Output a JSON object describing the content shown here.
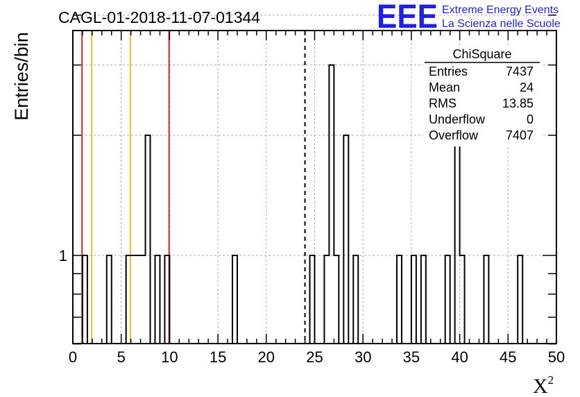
{
  "chart_data": {
    "type": "histogram",
    "title": "CAGL-01-2018-11-07-01344",
    "xlabel": "X",
    "xlabel_sup": "2",
    "ylabel": "Entries/bin",
    "xlim": [
      0,
      50
    ],
    "y_log": true,
    "y_tick_labels": [
      {
        "value": 1,
        "label": "1"
      }
    ],
    "x_ticks": [
      0,
      5,
      10,
      15,
      20,
      25,
      30,
      35,
      40,
      45,
      50
    ],
    "grid": true,
    "bin_width": 0.5,
    "bins": [
      {
        "x0": 1.0,
        "count": 1
      },
      {
        "x0": 3.5,
        "count": 1
      },
      {
        "x0": 5.5,
        "count": 1
      },
      {
        "x0": 6.0,
        "count": 1
      },
      {
        "x0": 6.5,
        "count": 1
      },
      {
        "x0": 7.0,
        "count": 1
      },
      {
        "x0": 7.5,
        "count": 2
      },
      {
        "x0": 8.5,
        "count": 1
      },
      {
        "x0": 9.5,
        "count": 1
      },
      {
        "x0": 16.5,
        "count": 1
      },
      {
        "x0": 24.5,
        "count": 1
      },
      {
        "x0": 26.0,
        "count": 1
      },
      {
        "x0": 26.5,
        "count": 3
      },
      {
        "x0": 27.0,
        "count": 1
      },
      {
        "x0": 28.0,
        "count": 2
      },
      {
        "x0": 29.0,
        "count": 1
      },
      {
        "x0": 33.5,
        "count": 1
      },
      {
        "x0": 35.0,
        "count": 1
      },
      {
        "x0": 36.0,
        "count": 1
      },
      {
        "x0": 38.5,
        "count": 1
      },
      {
        "x0": 39.5,
        "count": 2
      },
      {
        "x0": 40.0,
        "count": 1
      },
      {
        "x0": 42.5,
        "count": 1
      },
      {
        "x0": 46.0,
        "count": 1
      }
    ],
    "vertical_lines": [
      {
        "x": 0.95,
        "color": "#dd2222",
        "style": "solid"
      },
      {
        "x": 1.95,
        "color": "#f0c020",
        "style": "solid"
      },
      {
        "x": 5.95,
        "color": "#f0c020",
        "style": "solid"
      },
      {
        "x": 9.95,
        "color": "#dd2222",
        "style": "solid"
      },
      {
        "x": 24.0,
        "color": "#000000",
        "style": "dashed"
      }
    ],
    "stats_box": {
      "title": "ChiSquare",
      "rows": [
        {
          "label": "Entries",
          "value": "7437"
        },
        {
          "label": "Mean",
          "value": "24"
        },
        {
          "label": "RMS",
          "value": "13.85"
        },
        {
          "label": "Underflow",
          "value": "0"
        },
        {
          "label": "Overflow",
          "value": "7407"
        }
      ]
    }
  },
  "logo": {
    "mark": "EEE",
    "line1": "Extreme Energy Events",
    "line2": "La Scienza nelle Scuole",
    "color": "#1f1fe6"
  }
}
